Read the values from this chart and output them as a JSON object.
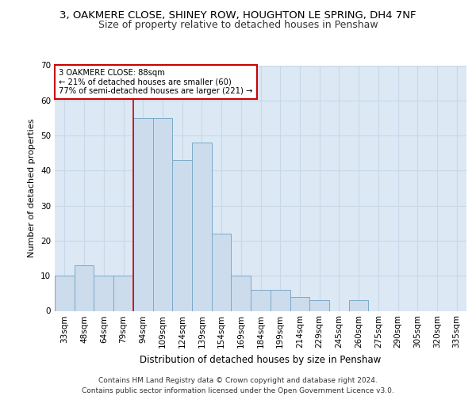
{
  "title1": "3, OAKMERE CLOSE, SHINEY ROW, HOUGHTON LE SPRING, DH4 7NF",
  "title2": "Size of property relative to detached houses in Penshaw",
  "xlabel": "Distribution of detached houses by size in Penshaw",
  "ylabel": "Number of detached properties",
  "categories": [
    "33sqm",
    "48sqm",
    "64sqm",
    "79sqm",
    "94sqm",
    "109sqm",
    "124sqm",
    "139sqm",
    "154sqm",
    "169sqm",
    "184sqm",
    "199sqm",
    "214sqm",
    "229sqm",
    "245sqm",
    "260sqm",
    "275sqm",
    "290sqm",
    "305sqm",
    "320sqm",
    "335sqm"
  ],
  "values": [
    10,
    13,
    10,
    10,
    55,
    55,
    43,
    48,
    22,
    10,
    6,
    6,
    4,
    3,
    0,
    3,
    0,
    0,
    0,
    0,
    0
  ],
  "bar_color": "#ccdcec",
  "bar_edge_color": "#7aaac8",
  "red_line_index": 3.5,
  "annotation_text": "3 OAKMERE CLOSE: 88sqm\n← 21% of detached houses are smaller (60)\n77% of semi-detached houses are larger (221) →",
  "annotation_box_color": "#ffffff",
  "annotation_edge_color": "#cc0000",
  "red_line_color": "#cc0000",
  "ylim": [
    0,
    70
  ],
  "yticks": [
    0,
    10,
    20,
    30,
    40,
    50,
    60,
    70
  ],
  "grid_color": "#c8d8e8",
  "background_color": "#dce8f4",
  "footer": "Contains HM Land Registry data © Crown copyright and database right 2024.\nContains public sector information licensed under the Open Government Licence v3.0.",
  "title1_fontsize": 9.5,
  "title2_fontsize": 9,
  "xlabel_fontsize": 8.5,
  "ylabel_fontsize": 8,
  "tick_fontsize": 7.5,
  "footer_fontsize": 6.5
}
